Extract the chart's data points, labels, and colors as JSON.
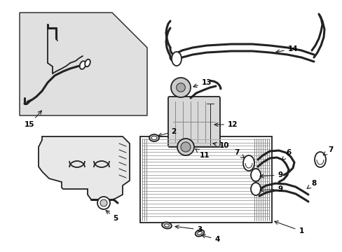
{
  "bg_color": "#ffffff",
  "line_color": "#222222",
  "label_color": "#000000",
  "inset_bg": "#e0e0e0",
  "lw": 1.3,
  "lw_thick": 2.2,
  "lw_thin": 0.7
}
